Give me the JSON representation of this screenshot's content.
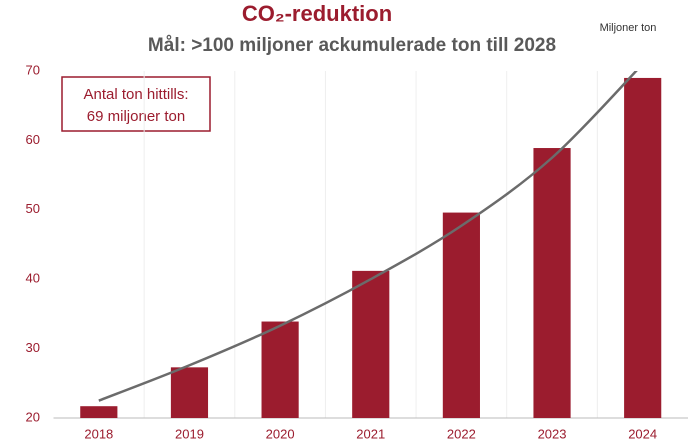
{
  "chart_data": {
    "type": "bar",
    "title": "CO₂-reduktion",
    "subtitle": "Mål: >100 miljoner ackumulerade ton till 2028",
    "unit_label": "Miljoner ton",
    "annotation": [
      "Antal ton hittills:",
      "69 miljoner ton"
    ],
    "categories": [
      "2018",
      "2019",
      "2020",
      "2021",
      "2022",
      "2023",
      "2024"
    ],
    "values": [
      21.7,
      27.3,
      33.9,
      41.2,
      49.6,
      58.9,
      69
    ],
    "color": "#9b1c2e",
    "trend": {
      "color": "#6b6b6b",
      "values": [
        22.5,
        27.6,
        33.3,
        40,
        47.7,
        57.5,
        71
      ]
    },
    "ylim": [
      20,
      70
    ],
    "yticks": [
      20,
      30,
      40,
      50,
      60,
      70
    ],
    "grid": false
  }
}
